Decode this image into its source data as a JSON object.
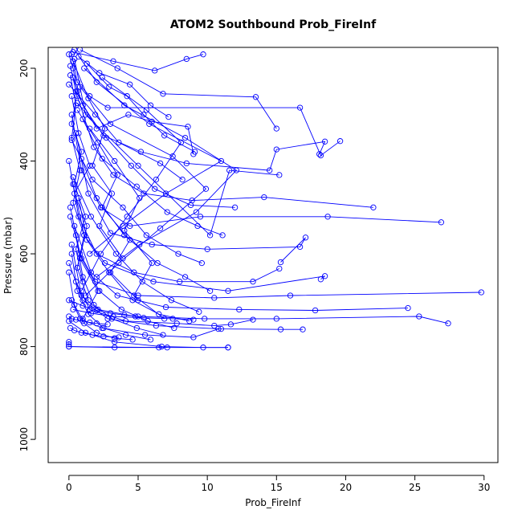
{
  "chart_data": {
    "type": "line",
    "title": "ATOM2 Southbound Prob_FireInf",
    "xlabel": "Prob_FireInf",
    "ylabel": "Pressure (mbar)",
    "xlim": [
      -1.5,
      31
    ],
    "ylim": [
      1050,
      155
    ],
    "y_inverted": true,
    "x_ticks": [
      0,
      5,
      10,
      15,
      20,
      25,
      30
    ],
    "x_tick_labels": [
      "0",
      "5",
      "10",
      "15",
      "20",
      "25",
      "30"
    ],
    "y_ticks": [
      200,
      400,
      600,
      800,
      1000
    ],
    "y_tick_labels": [
      "200",
      "400",
      "600",
      "800",
      "1000"
    ],
    "grid": false,
    "legend": "none",
    "series_color": "#0000ff",
    "marker": "open-circle",
    "series": [
      {
        "x": [
          0.2,
          0.6,
          1.5,
          2.8,
          16.7,
          18.2,
          19.6
        ],
        "y": [
          170,
          230,
          260,
          285,
          285,
          388,
          357
        ]
      },
      {
        "x": [
          0.8,
          3.5,
          6.8,
          13.5,
          15.0
        ],
        "y": [
          160,
          200,
          255,
          262,
          330
        ]
      },
      {
        "x": [
          0.4,
          1.2,
          5.0,
          10.2,
          11.6,
          15.2
        ],
        "y": [
          180,
          300,
          410,
          560,
          420,
          430
        ]
      },
      {
        "x": [
          0.1,
          0.5,
          2.0,
          4.3,
          6.0,
          8.6,
          9.0
        ],
        "y": [
          195,
          250,
          330,
          300,
          315,
          326,
          385
        ]
      },
      {
        "x": [
          0.3,
          1.0,
          2.5,
          5.2,
          8.5,
          14.5,
          15.0,
          18.5,
          18.1
        ],
        "y": [
          220,
          280,
          345,
          380,
          405,
          420,
          375,
          358,
          385
        ]
      },
      {
        "x": [
          0.6,
          1.8,
          3.2,
          5.4,
          8.9,
          14.1,
          22.0
        ],
        "y": [
          260,
          370,
          430,
          470,
          485,
          478,
          500
        ]
      },
      {
        "x": [
          0.2,
          0.9,
          2.3,
          4.4,
          9.5,
          18.7,
          26.9
        ],
        "y": [
          300,
          420,
          500,
          540,
          520,
          520,
          532
        ]
      },
      {
        "x": [
          0.5,
          1.4,
          3.0,
          6.0,
          10.0,
          16.7,
          17.1,
          15.3
        ],
        "y": [
          340,
          470,
          555,
          580,
          590,
          585,
          565,
          618
        ]
      },
      {
        "x": [
          0.0,
          0.7,
          2.0,
          4.7,
          8.0,
          13.3,
          15.2
        ],
        "y": [
          400,
          520,
          600,
          640,
          660,
          660,
          632
        ]
      },
      {
        "x": [
          0.3,
          1.1,
          2.6,
          6.1,
          11.5,
          18.5,
          18.2
        ],
        "y": [
          450,
          560,
          620,
          660,
          680,
          648,
          655
        ]
      },
      {
        "x": [
          0.1,
          0.8,
          1.9,
          5.0,
          10.5,
          16.0,
          29.8
        ],
        "y": [
          500,
          600,
          660,
          690,
          695,
          690,
          683
        ]
      },
      {
        "x": [
          0.4,
          1.6,
          3.5,
          7.0,
          12.3,
          17.8,
          24.5
        ],
        "y": [
          540,
          640,
          690,
          715,
          720,
          722,
          717
        ]
      },
      {
        "x": [
          0.2,
          0.9,
          2.1,
          4.8,
          9.8,
          15.0,
          25.3,
          27.4
        ],
        "y": [
          580,
          690,
          720,
          735,
          740,
          740,
          735,
          750
        ]
      },
      {
        "x": [
          0.0,
          1.0,
          2.8,
          6.3,
          11.0,
          15.3,
          16.9
        ],
        "y": [
          620,
          700,
          740,
          755,
          762,
          763,
          763
        ]
      },
      {
        "x": [
          0.5,
          1.5,
          4.1,
          7.8,
          10.5,
          11.7,
          13.3
        ],
        "y": [
          660,
          720,
          745,
          750,
          755,
          752,
          742
        ]
      },
      {
        "x": [
          0.2,
          0.8,
          2.4,
          5.5,
          9.0,
          10.8
        ],
        "y": [
          700,
          740,
          760,
          775,
          780,
          762
        ]
      },
      {
        "x": [
          0.0,
          1.2,
          3.3,
          6.7,
          9.7,
          11.5
        ],
        "y": [
          745,
          770,
          790,
          800,
          802,
          802
        ]
      },
      {
        "x": [
          0.0,
          0.0,
          0.0,
          3.3,
          7.1
        ],
        "y": [
          790,
          795,
          800,
          802,
          802
        ]
      },
      {
        "x": [
          0.3,
          3.2,
          6.2,
          8.5,
          9.7
        ],
        "y": [
          165,
          185,
          205,
          180,
          170
        ]
      },
      {
        "x": [
          0.7,
          2.2,
          4.4,
          5.9,
          7.2
        ],
        "y": [
          175,
          210,
          235,
          280,
          305
        ]
      },
      {
        "x": [
          1.3,
          2.9,
          4.2,
          5.4,
          6.9,
          9.1
        ],
        "y": [
          190,
          240,
          260,
          300,
          345,
          380
        ]
      },
      {
        "x": [
          0.0,
          1.9,
          3.6,
          6.6,
          8.2
        ],
        "y": [
          235,
          300,
          360,
          405,
          440
        ]
      },
      {
        "x": [
          0.6,
          2.7,
          4.5,
          6.2,
          8.8,
          12.0
        ],
        "y": [
          275,
          350,
          410,
          460,
          495,
          500
        ]
      },
      {
        "x": [
          1.0,
          2.4,
          4.9,
          7.1,
          9.3,
          11.1
        ],
        "y": [
          310,
          395,
          455,
          510,
          540,
          560
        ]
      },
      {
        "x": [
          0.2,
          1.7,
          3.9,
          5.6,
          7.9,
          9.6
        ],
        "y": [
          355,
          440,
          500,
          560,
          600,
          620
        ]
      },
      {
        "x": [
          0.9,
          2.0,
          4.0,
          6.4,
          8.4,
          10.2
        ],
        "y": [
          395,
          480,
          560,
          620,
          650,
          680
        ]
      },
      {
        "x": [
          0.3,
          1.6,
          3.4,
          5.3,
          7.4,
          9.4
        ],
        "y": [
          435,
          520,
          600,
          660,
          700,
          725
        ]
      },
      {
        "x": [
          0.7,
          1.3,
          2.9,
          4.6,
          6.5,
          8.7
        ],
        "y": [
          480,
          570,
          640,
          700,
          730,
          745
        ]
      },
      {
        "x": [
          0.1,
          0.9,
          2.2,
          3.8,
          5.7,
          7.6
        ],
        "y": [
          520,
          610,
          680,
          720,
          745,
          760
        ]
      },
      {
        "x": [
          0.5,
          1.0,
          1.8,
          3.1,
          4.9,
          6.8
        ],
        "y": [
          560,
          650,
          710,
          740,
          760,
          775
        ]
      },
      {
        "x": [
          0.2,
          0.6,
          1.4,
          2.5,
          4.1,
          5.9
        ],
        "y": [
          600,
          680,
          730,
          760,
          775,
          785
        ]
      },
      {
        "x": [
          0.0,
          0.4,
          1.1,
          2.0,
          3.3,
          4.6
        ],
        "y": [
          640,
          710,
          750,
          770,
          782,
          785
        ]
      },
      {
        "x": [
          0.4,
          2.0,
          5.8,
          11.0,
          7.0,
          3.9,
          1.5
        ],
        "y": [
          160,
          230,
          320,
          400,
          470,
          540,
          600
        ]
      },
      {
        "x": [
          1.1,
          4.0,
          8.4,
          12.1,
          9.2,
          5.1,
          2.0
        ],
        "y": [
          200,
          280,
          350,
          420,
          510,
          580,
          650
        ]
      },
      {
        "x": [
          0.8,
          3.0,
          7.5,
          9.9,
          6.6,
          3.6,
          1.2
        ],
        "y": [
          240,
          320,
          390,
          460,
          545,
          620,
          690
        ]
      },
      {
        "x": [
          2.4,
          5.6,
          8.1,
          6.3,
          4.2,
          2.3,
          0.9
        ],
        "y": [
          220,
          290,
          360,
          440,
          520,
          600,
          680
        ]
      },
      {
        "x": [
          0.0,
          0.3,
          0.6,
          0.2,
          0.9,
          0.4,
          1.2,
          0.5,
          1.0
        ],
        "y": [
          170,
          200,
          250,
          320,
          380,
          450,
          520,
          590,
          660
        ]
      },
      {
        "x": [
          0.1,
          0.5,
          0.2,
          0.8,
          0.3,
          1.1,
          0.6,
          1.4
        ],
        "y": [
          215,
          280,
          350,
          420,
          490,
          560,
          630,
          700
        ]
      },
      {
        "x": [
          0.2,
          0.7,
          1.5,
          0.4,
          1.3,
          0.8,
          2.1,
          1.0
        ],
        "y": [
          260,
          340,
          410,
          470,
          540,
          610,
          680,
          740
        ]
      },
      {
        "x": [
          0.3,
          1.4,
          2.6,
          1.7,
          3.1,
          2.2,
          3.9
        ],
        "y": [
          185,
          265,
          330,
          410,
          470,
          540,
          610
        ]
      },
      {
        "x": [
          0.6,
          2.1,
          3.5,
          2.4,
          4.4,
          3.0,
          5.0
        ],
        "y": [
          290,
          360,
          430,
          500,
          570,
          640,
          700
        ]
      },
      {
        "x": [
          1.5,
          3.3,
          5.1,
          4.0,
          6.0,
          4.7,
          6.9
        ],
        "y": [
          330,
          400,
          480,
          550,
          620,
          690,
          740
        ]
      },
      {
        "x": [
          0.0,
          1.0,
          2.0,
          3.0,
          4.0,
          5.0
        ],
        "y": [
          700,
          712,
          722,
          728,
          732,
          735
        ]
      },
      {
        "x": [
          0.3,
          1.6,
          3.2,
          5.4,
          7.5,
          9.0
        ],
        "y": [
          720,
          728,
          735,
          738,
          740,
          742
        ]
      },
      {
        "x": [
          0.0,
          0.2,
          0.5,
          1.0,
          1.5,
          2.0,
          2.8
        ],
        "y": [
          735,
          740,
          742,
          745,
          748,
          750,
          752
        ]
      },
      {
        "x": [
          0.1,
          0.4,
          0.9,
          1.7,
          2.5,
          3.6
        ],
        "y": [
          760,
          765,
          770,
          775,
          778,
          780
        ]
      },
      {
        "x": [
          0.0,
          6.5,
          11.5
        ],
        "y": [
          800,
          802,
          802
        ]
      }
    ]
  }
}
